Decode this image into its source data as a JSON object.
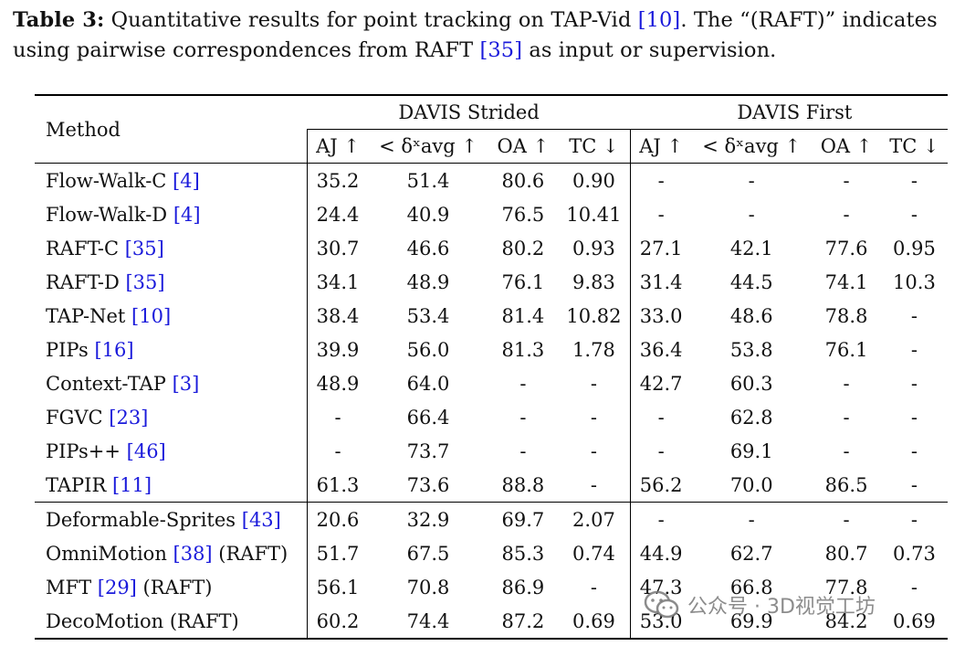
{
  "caption": {
    "label": "Table 3:",
    "part1": " Quantitative results for point tracking on TAP-Vid ",
    "cite1": "[10]",
    "part2": ". The “(RAFT)” indicates using pairwise correspondences from RAFT ",
    "cite2": "[35]",
    "part3": " as input or supervision."
  },
  "header": {
    "method": "Method",
    "group1": "DAVIS Strided",
    "group2": "DAVIS First",
    "cols": [
      "AJ ↑",
      "< δˣavg ↑",
      "OA ↑",
      "TC ↓",
      "AJ ↑",
      "< δˣavg ↑",
      "OA ↑",
      "TC ↓"
    ]
  },
  "rows": [
    {
      "name": "Flow-Walk-C ",
      "cite": "[4]",
      "suffix": "",
      "v": [
        "35.2",
        "51.4",
        "80.6",
        "0.90",
        "-",
        "-",
        "-",
        "-"
      ]
    },
    {
      "name": "Flow-Walk-D ",
      "cite": "[4]",
      "suffix": "",
      "v": [
        "24.4",
        "40.9",
        "76.5",
        "10.41",
        "-",
        "-",
        "-",
        "-"
      ]
    },
    {
      "name": "RAFT-C ",
      "cite": "[35]",
      "suffix": "",
      "v": [
        "30.7",
        "46.6",
        "80.2",
        "0.93",
        "27.1",
        "42.1",
        "77.6",
        "0.95"
      ]
    },
    {
      "name": "RAFT-D ",
      "cite": "[35]",
      "suffix": "",
      "v": [
        "34.1",
        "48.9",
        "76.1",
        "9.83",
        "31.4",
        "44.5",
        "74.1",
        "10.3"
      ]
    },
    {
      "name": "TAP-Net ",
      "cite": "[10]",
      "suffix": "",
      "v": [
        "38.4",
        "53.4",
        "81.4",
        "10.82",
        "33.0",
        "48.6",
        "78.8",
        "-"
      ]
    },
    {
      "name": "PIPs ",
      "cite": "[16]",
      "suffix": "",
      "v": [
        "39.9",
        "56.0",
        "81.3",
        "1.78",
        "36.4",
        "53.8",
        "76.1",
        "-"
      ]
    },
    {
      "name": "Context-TAP ",
      "cite": "[3]",
      "suffix": "",
      "v": [
        "48.9",
        "64.0",
        "-",
        "-",
        "42.7",
        "60.3",
        "-",
        "-"
      ]
    },
    {
      "name": "FGVC ",
      "cite": "[23]",
      "suffix": "",
      "v": [
        "-",
        "66.4",
        "-",
        "-",
        "-",
        "62.8",
        "-",
        "-"
      ]
    },
    {
      "name": "PIPs++ ",
      "cite": "[46]",
      "suffix": "",
      "v": [
        "-",
        "73.7",
        "-",
        "-",
        "-",
        "69.1",
        "-",
        "-"
      ]
    },
    {
      "name": "TAPIR ",
      "cite": "[11]",
      "suffix": "",
      "v": [
        "61.3",
        "73.6",
        "88.8",
        "-",
        "56.2",
        "70.0",
        "86.5",
        "-"
      ]
    },
    {
      "name": "Deformable-Sprites ",
      "cite": "[43]",
      "suffix": "",
      "v": [
        "20.6",
        "32.9",
        "69.7",
        "2.07",
        "-",
        "-",
        "-",
        "-"
      ]
    },
    {
      "name": "OmniMotion ",
      "cite": "[38]",
      "suffix": " (RAFT)",
      "v": [
        "51.7",
        "67.5",
        "85.3",
        "0.74",
        "44.9",
        "62.7",
        "80.7",
        "0.73"
      ]
    },
    {
      "name": "MFT ",
      "cite": "[29]",
      "suffix": " (RAFT)",
      "v": [
        "56.1",
        "70.8",
        "86.9",
        "-",
        "47.3",
        "66.8",
        "77.8",
        "-"
      ]
    },
    {
      "name": "DecoMotion (RAFT)",
      "cite": "",
      "suffix": "",
      "v": [
        "60.2",
        "74.4",
        "87.2",
        "0.69",
        "53.0",
        "69.9",
        "84.2",
        "0.69"
      ]
    }
  ],
  "bold": {
    "0": [
      3
    ],
    "2": [
      7
    ],
    "8": [
      1
    ],
    "9": [
      0,
      2,
      4,
      5,
      6
    ],
    "13": [
      0,
      1,
      2,
      3,
      4,
      5,
      6,
      7
    ]
  },
  "watermark": {
    "text": "公众号 · 3D视觉工坊",
    "icon": "wechat-icon"
  }
}
